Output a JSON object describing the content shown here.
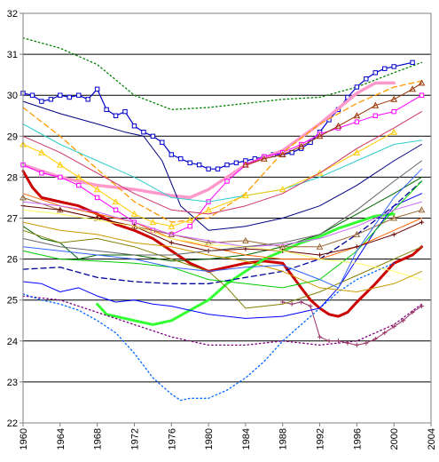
{
  "chart_data": {
    "type": "line",
    "title": "",
    "xlabel": "",
    "ylabel": "",
    "xlim": [
      1960,
      2004
    ],
    "ylim": [
      22,
      32
    ],
    "x_ticks": [
      "1960",
      "1964",
      "1968",
      "1972",
      "1976",
      "1980",
      "1984",
      "1988",
      "1992",
      "1996",
      "2000",
      "2004"
    ],
    "y_ticks": [
      "22",
      "23",
      "24",
      "25",
      "26",
      "27",
      "28",
      "29",
      "30",
      "31",
      "32"
    ],
    "grid": "horizontal",
    "legend": "none",
    "background": "#ffffff",
    "series": [
      {
        "color": "#008000",
        "style": "dotted",
        "width": 1.3,
        "marker": "none",
        "x": [
          1960,
          1964,
          1968,
          1972,
          1976,
          1980,
          1984,
          1988,
          1992,
          1996,
          2000,
          2003
        ],
        "y": [
          31.4,
          31.15,
          30.75,
          30.0,
          29.65,
          29.7,
          29.8,
          29.9,
          29.95,
          30.2,
          30.55,
          30.8
        ]
      },
      {
        "color": "#0000cc",
        "style": "solid",
        "width": 1.2,
        "marker": "square",
        "x": [
          1960,
          1961,
          1962,
          1963,
          1964,
          1965,
          1966,
          1967,
          1968,
          1969,
          1970,
          1971,
          1972,
          1973,
          1974,
          1975,
          1976,
          1977,
          1978,
          1979,
          1980,
          1981,
          1982,
          1983,
          1984,
          1985,
          1986,
          1987,
          1988,
          1989,
          1990,
          1991,
          1992,
          1993,
          1994,
          1995,
          1996,
          1997,
          1998,
          1999,
          2000,
          2002
        ],
        "y": [
          30.05,
          30.0,
          29.85,
          29.9,
          30.0,
          29.95,
          30.0,
          29.9,
          30.15,
          29.65,
          29.5,
          29.6,
          29.25,
          29.1,
          29.0,
          28.85,
          28.55,
          28.45,
          28.35,
          28.3,
          28.2,
          28.2,
          28.3,
          28.35,
          28.4,
          28.45,
          28.5,
          28.55,
          28.55,
          28.6,
          28.7,
          28.85,
          29.1,
          29.4,
          29.65,
          29.95,
          30.2,
          30.4,
          30.55,
          30.65,
          30.7,
          30.8
        ]
      },
      {
        "color": "#ff99cc",
        "style": "solid",
        "width": 3.5,
        "marker": "none",
        "x": [
          1960,
          1964,
          1968,
          1972,
          1976,
          1978,
          1980,
          1984,
          1988,
          1992,
          1996,
          1998,
          2000
        ],
        "y": [
          28.3,
          28.0,
          27.8,
          27.7,
          27.55,
          27.5,
          27.7,
          28.3,
          28.65,
          29.3,
          30.05,
          30.3,
          30.3
        ]
      },
      {
        "color": "#ff00ff",
        "style": "solid",
        "width": 1.0,
        "marker": "square",
        "x": [
          1960,
          1962,
          1964,
          1966,
          1968,
          1970,
          1972,
          1974,
          1976,
          1978,
          1980,
          1982,
          1984,
          1986,
          1988,
          1990,
          1992,
          1994,
          1996,
          1998,
          2000,
          2003
        ],
        "y": [
          28.3,
          28.1,
          28.0,
          27.8,
          27.5,
          27.2,
          26.9,
          26.7,
          26.6,
          26.8,
          27.4,
          27.9,
          28.3,
          28.5,
          28.6,
          28.8,
          29.05,
          29.2,
          29.35,
          29.5,
          29.6,
          30.0
        ]
      },
      {
        "color": "#ff9900",
        "style": "dashed",
        "width": 1.3,
        "marker": "none",
        "x": [
          1960,
          1964,
          1968,
          1972,
          1976,
          1980,
          1984,
          1988,
          1992,
          1996,
          2000,
          2003
        ],
        "y": [
          29.7,
          29.0,
          28.2,
          27.4,
          26.9,
          27.0,
          27.6,
          28.6,
          29.3,
          29.8,
          30.2,
          30.35
        ]
      },
      {
        "color": "#993300",
        "style": "solid",
        "width": 1.0,
        "marker": "triangle",
        "x": [
          1984,
          1986,
          1988,
          1990,
          1992,
          1994,
          1996,
          1998,
          2000,
          2002,
          2003
        ],
        "y": [
          28.3,
          28.45,
          28.55,
          28.75,
          29.0,
          29.25,
          29.5,
          29.75,
          29.9,
          30.15,
          30.3
        ]
      },
      {
        "color": "#000080",
        "style": "solid",
        "width": 1.0,
        "marker": "none",
        "x": [
          1960,
          1964,
          1968,
          1971,
          1973,
          1975,
          1977,
          1980,
          1984,
          1988,
          1992,
          1996,
          2000,
          2003
        ],
        "y": [
          29.85,
          29.55,
          29.3,
          29.1,
          29.0,
          28.4,
          27.3,
          26.7,
          26.8,
          27.0,
          27.3,
          27.8,
          28.4,
          28.8
        ]
      },
      {
        "color": "#33cccc",
        "style": "solid",
        "width": 1.0,
        "marker": "none",
        "x": [
          1960,
          1964,
          1968,
          1972,
          1976,
          1980,
          1984,
          1988,
          1992,
          1996,
          2000,
          2003
        ],
        "y": [
          29.3,
          28.8,
          28.4,
          28.0,
          27.5,
          27.4,
          27.55,
          27.7,
          28.0,
          28.4,
          28.8,
          28.9
        ]
      },
      {
        "color": "#ffcc00",
        "style": "solid",
        "width": 1.0,
        "marker": "triangle",
        "x": [
          1960,
          1962,
          1964,
          1966,
          1968,
          1970,
          1972,
          1974,
          1976,
          1978,
          1980,
          1984,
          1988,
          1992,
          1996,
          2000
        ],
        "y": [
          28.8,
          28.6,
          28.3,
          28.0,
          27.7,
          27.4,
          27.1,
          26.9,
          26.8,
          26.95,
          27.2,
          27.55,
          27.7,
          28.1,
          28.6,
          29.1
        ]
      },
      {
        "color": "#cc3366",
        "style": "solid",
        "width": 1.0,
        "marker": "none",
        "x": [
          1960,
          1964,
          1968,
          1972,
          1976,
          1980,
          1984,
          1988,
          1992,
          1996,
          2000,
          2003
        ],
        "y": [
          29.0,
          28.6,
          28.1,
          27.6,
          27.2,
          27.1,
          27.3,
          27.6,
          28.1,
          28.7,
          29.2,
          29.6
        ]
      },
      {
        "color": "#cc0000",
        "style": "solid",
        "width": 3.0,
        "marker": "none",
        "x": [
          1960,
          1961,
          1962,
          1964,
          1966,
          1968,
          1970,
          1972,
          1974,
          1976,
          1978,
          1980,
          1982,
          1984,
          1986,
          1988,
          1989,
          1990,
          1991,
          1992,
          1993,
          1994,
          1995,
          1996,
          1998,
          2000,
          2002,
          2003
        ],
        "y": [
          28.15,
          27.75,
          27.5,
          27.4,
          27.3,
          27.1,
          26.85,
          26.7,
          26.5,
          26.2,
          25.9,
          25.7,
          25.8,
          25.9,
          25.95,
          25.9,
          25.6,
          25.3,
          25.0,
          24.8,
          24.65,
          24.6,
          24.7,
          24.95,
          25.4,
          25.9,
          26.1,
          26.3
        ]
      },
      {
        "color": "#33ff33",
        "style": "solid",
        "width": 3.0,
        "marker": "none",
        "x": [
          1968,
          1969,
          1970,
          1972,
          1974,
          1976,
          1978,
          1980,
          1982,
          1984,
          1986,
          1988,
          1990,
          1992,
          1994,
          1996,
          1998,
          2000
        ],
        "y": [
          24.9,
          24.65,
          24.6,
          24.5,
          24.4,
          24.5,
          24.75,
          25.0,
          25.4,
          25.7,
          26.0,
          26.2,
          26.4,
          26.55,
          26.75,
          26.9,
          27.05,
          27.1
        ]
      },
      {
        "color": "#800080",
        "style": "dotted",
        "width": 1.3,
        "marker": "none",
        "x": [
          1960,
          1964,
          1968,
          1972,
          1976,
          1980,
          1984,
          1988,
          1992,
          1996,
          2000,
          2003
        ],
        "y": [
          25.1,
          25.0,
          24.7,
          24.4,
          24.1,
          23.9,
          23.9,
          24.0,
          23.9,
          24.0,
          24.4,
          24.9
        ]
      },
      {
        "color": "#993366",
        "style": "solid",
        "width": 1.0,
        "marker": "plus",
        "x": [
          1988,
          1989,
          1990,
          1991,
          1992,
          1993,
          1994,
          1995,
          1996,
          1997,
          1998,
          1999,
          2000,
          2001,
          2002,
          2003
        ],
        "y": [
          24.95,
          24.9,
          24.95,
          24.85,
          24.1,
          24.0,
          24.0,
          23.95,
          23.9,
          23.95,
          24.05,
          24.2,
          24.35,
          24.5,
          24.7,
          24.85
        ]
      },
      {
        "color": "#0066ff",
        "style": "dotted",
        "width": 1.3,
        "marker": "none",
        "x": [
          1960,
          1962,
          1964,
          1966,
          1968,
          1970,
          1972,
          1974,
          1976,
          1977,
          1978,
          1980,
          1982,
          1984,
          1986,
          1988,
          1990,
          1992,
          1994,
          1996,
          1998,
          2000
        ],
        "y": [
          25.15,
          25.0,
          24.9,
          24.75,
          24.5,
          24.2,
          23.7,
          23.1,
          22.7,
          22.55,
          22.6,
          22.6,
          22.8,
          23.1,
          23.5,
          24.0,
          24.4,
          24.8,
          25.2,
          25.5,
          25.7,
          25.9
        ]
      },
      {
        "color": "#0000ff",
        "style": "solid",
        "width": 1.0,
        "marker": "none",
        "x": [
          1960,
          1962,
          1964,
          1966,
          1968,
          1970,
          1972,
          1974,
          1976,
          1978,
          1980,
          1984,
          1988,
          1992,
          1994,
          1996,
          1998,
          2000,
          2003
        ],
        "y": [
          25.45,
          25.4,
          25.2,
          25.3,
          25.1,
          24.95,
          25.0,
          24.9,
          24.85,
          24.75,
          24.65,
          24.55,
          24.6,
          24.8,
          25.3,
          26.0,
          26.7,
          27.3,
          27.6
        ]
      },
      {
        "color": "#000099",
        "style": "dashed",
        "width": 1.3,
        "marker": "none",
        "x": [
          1960,
          1964,
          1968,
          1972,
          1976,
          1980,
          1984,
          1988,
          1992,
          1996,
          2000,
          2003
        ],
        "y": [
          25.75,
          25.8,
          25.55,
          25.45,
          25.4,
          25.4,
          25.55,
          25.7,
          26.0,
          26.6,
          27.3,
          27.9
        ]
      },
      {
        "color": "#00cc00",
        "style": "solid",
        "width": 1.0,
        "marker": "none",
        "x": [
          1960,
          1964,
          1968,
          1972,
          1976,
          1980,
          1984,
          1988,
          1992,
          1996,
          2000,
          2003
        ],
        "y": [
          26.2,
          26.0,
          25.95,
          25.9,
          25.8,
          25.5,
          25.4,
          25.3,
          25.5,
          26.2,
          27.2,
          27.9
        ]
      },
      {
        "color": "#006600",
        "style": "solid",
        "width": 1.0,
        "marker": "none",
        "x": [
          1960,
          1962,
          1964,
          1966,
          1968,
          1972,
          1976,
          1980,
          1984,
          1988,
          1992,
          1996,
          2000,
          2003
        ],
        "y": [
          26.8,
          26.5,
          26.4,
          26.0,
          26.1,
          26.1,
          25.95,
          26.0,
          26.1,
          26.3,
          26.6,
          27.1,
          27.6,
          28.0
        ]
      },
      {
        "color": "#808000",
        "style": "solid",
        "width": 1.0,
        "marker": "none",
        "x": [
          1960,
          1964,
          1968,
          1972,
          1976,
          1980,
          1982,
          1984,
          1988,
          1992,
          1996,
          2000,
          2003
        ],
        "y": [
          26.7,
          26.4,
          26.5,
          26.3,
          26.0,
          25.7,
          25.3,
          24.8,
          24.9,
          25.2,
          25.6,
          26.0,
          26.3
        ]
      },
      {
        "color": "#ff6600",
        "style": "solid",
        "width": 1.0,
        "marker": "none",
        "x": [
          1960,
          1964,
          1968,
          1972,
          1976,
          1980,
          1984,
          1988,
          1992,
          1996,
          2000,
          2003
        ],
        "y": [
          27.6,
          27.3,
          27.1,
          26.9,
          26.5,
          26.3,
          26.1,
          26.0,
          26.0,
          26.3,
          26.7,
          27.0
        ]
      },
      {
        "color": "#996633",
        "style": "solid",
        "width": 1.0,
        "marker": "triangle",
        "x": [
          1960,
          1964,
          1968,
          1972,
          1976,
          1980,
          1984,
          1988,
          1992,
          1996,
          2000,
          2003
        ],
        "y": [
          27.5,
          27.2,
          27.0,
          26.8,
          26.6,
          26.4,
          26.45,
          26.3,
          26.3,
          26.6,
          27.0,
          27.2
        ]
      },
      {
        "color": "#cc66ff",
        "style": "solid",
        "width": 1.0,
        "marker": "none",
        "x": [
          1960,
          1964,
          1968,
          1972,
          1976,
          1980,
          1984,
          1988,
          1992,
          1996,
          2000,
          2003
        ],
        "y": [
          27.4,
          27.3,
          27.15,
          26.9,
          26.6,
          26.45,
          26.3,
          26.35,
          26.5,
          26.8,
          27.2,
          27.4
        ]
      },
      {
        "color": "#660000",
        "style": "solid",
        "width": 1.0,
        "marker": "plus",
        "x": [
          1960,
          1964,
          1968,
          1972,
          1976,
          1980,
          1984,
          1988,
          1992,
          1996,
          2000,
          2003
        ],
        "y": [
          27.3,
          27.2,
          27.0,
          26.8,
          26.4,
          26.2,
          26.25,
          26.2,
          26.1,
          26.3,
          26.6,
          26.9
        ]
      },
      {
        "color": "#ffff66",
        "style": "solid",
        "width": 1.0,
        "marker": "none",
        "x": [
          1960,
          1964,
          1968,
          1972,
          1976,
          1980,
          1984,
          1988,
          1992,
          1996,
          2000,
          2003
        ],
        "y": [
          27.2,
          27.1,
          26.95,
          26.8,
          26.5,
          26.35,
          26.3,
          26.2,
          26.0,
          25.9,
          25.7,
          25.5
        ]
      },
      {
        "color": "#cc9900",
        "style": "solid",
        "width": 1.0,
        "marker": "none",
        "x": [
          1960,
          1964,
          1968,
          1972,
          1976,
          1980,
          1984,
          1988,
          1992,
          1996,
          2000,
          2003
        ],
        "y": [
          26.9,
          26.7,
          26.6,
          26.4,
          26.3,
          26.1,
          25.95,
          25.7,
          25.3,
          25.2,
          25.4,
          25.7
        ]
      },
      {
        "color": "#666666",
        "style": "solid",
        "width": 1.0,
        "marker": "none",
        "x": [
          1960,
          1964,
          1968,
          1972,
          1976,
          1980,
          1984,
          1988,
          1992,
          1996,
          2000,
          2003
        ],
        "y": [
          26.5,
          26.3,
          26.2,
          26.1,
          26.1,
          26.2,
          26.3,
          26.4,
          26.6,
          27.2,
          27.9,
          28.4
        ]
      },
      {
        "color": "#3366ff",
        "style": "solid",
        "width": 1.0,
        "marker": "none",
        "x": [
          1960,
          1964,
          1968,
          1972,
          1976,
          1980,
          1984,
          1988,
          1992,
          1994,
          1996,
          2000,
          2003
        ],
        "y": [
          26.3,
          26.2,
          26.1,
          26.0,
          25.8,
          25.7,
          25.8,
          25.85,
          25.5,
          25.3,
          26.2,
          27.5,
          28.2
        ]
      }
    ]
  }
}
